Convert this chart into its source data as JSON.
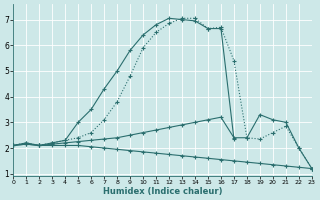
{
  "xlabel": "Humidex (Indice chaleur)",
  "bg_color": "#cde8e8",
  "grid_color": "#b8d8d8",
  "line_color": "#2a6e6e",
  "xlim": [
    0,
    23
  ],
  "ylim": [
    0.9,
    7.6
  ],
  "yticks": [
    1,
    2,
    3,
    4,
    5,
    6,
    7
  ],
  "xticks": [
    0,
    1,
    2,
    3,
    4,
    5,
    6,
    7,
    8,
    9,
    10,
    11,
    12,
    13,
    14,
    15,
    16,
    17,
    18,
    19,
    20,
    21,
    22,
    23
  ],
  "curves": [
    {
      "x": [
        0,
        1,
        2,
        3,
        4,
        5,
        6,
        7,
        8,
        9,
        10,
        11,
        12,
        13,
        14,
        15,
        16,
        17,
        18,
        19,
        20,
        21,
        22,
        23
      ],
      "y": [
        2.1,
        2.2,
        2.1,
        2.2,
        2.3,
        2.4,
        2.6,
        3.1,
        3.8,
        4.8,
        5.9,
        6.5,
        6.85,
        7.05,
        7.05,
        6.65,
        6.7,
        5.4,
        2.4,
        2.35,
        2.6,
        2.85,
        2.0,
        1.2
      ],
      "linestyle": "-",
      "dotted": true
    },
    {
      "x": [
        0,
        1,
        2,
        3,
        4,
        5,
        6,
        7,
        8,
        9,
        10,
        11,
        12,
        13,
        14,
        15,
        16,
        17
      ],
      "y": [
        2.1,
        2.2,
        2.1,
        2.2,
        2.3,
        3.0,
        3.5,
        4.3,
        5.0,
        5.8,
        6.4,
        6.8,
        7.05,
        7.0,
        6.95,
        6.65,
        6.65,
        2.35
      ],
      "linestyle": "-",
      "dotted": false
    },
    {
      "x": [
        0,
        1,
        2,
        3,
        4,
        5,
        6,
        7,
        8,
        9,
        10,
        11,
        12,
        13,
        14,
        15,
        16,
        17,
        18,
        19,
        20,
        21,
        22,
        23
      ],
      "y": [
        2.1,
        2.15,
        2.1,
        2.15,
        2.2,
        2.25,
        2.3,
        2.35,
        2.4,
        2.5,
        2.6,
        2.7,
        2.8,
        2.9,
        3.0,
        3.1,
        3.2,
        2.4,
        2.4,
        3.3,
        3.1,
        3.0,
        2.0,
        1.2
      ],
      "linestyle": "-",
      "dotted": false
    },
    {
      "x": [
        0,
        1,
        2,
        3,
        4,
        5,
        6,
        7,
        8,
        9,
        10,
        11,
        12,
        13,
        14,
        15,
        16,
        17,
        18,
        19,
        20,
        21,
        22,
        23
      ],
      "y": [
        2.1,
        2.15,
        2.1,
        2.1,
        2.1,
        2.1,
        2.05,
        2.0,
        1.95,
        1.9,
        1.85,
        1.8,
        1.75,
        1.7,
        1.65,
        1.6,
        1.55,
        1.5,
        1.45,
        1.4,
        1.35,
        1.3,
        1.25,
        1.2
      ],
      "linestyle": "-",
      "dotted": false
    }
  ]
}
